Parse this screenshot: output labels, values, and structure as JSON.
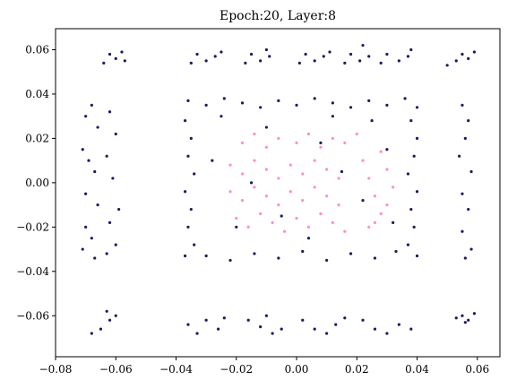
{
  "chart_data": {
    "type": "scatter",
    "title": "Epoch:20, Layer:8",
    "xlabel": "",
    "ylabel": "",
    "xlim": [
      -0.08,
      0.0675
    ],
    "ylim": [
      -0.0785,
      0.0695
    ],
    "x_ticks": [
      -0.08,
      -0.06,
      -0.04,
      -0.02,
      0.0,
      0.02,
      0.04,
      0.06
    ],
    "x_tick_labels": [
      "−0.08",
      "−0.06",
      "−0.04",
      "−0.02",
      "0.00",
      "0.02",
      "0.04",
      "0.06"
    ],
    "y_ticks": [
      -0.06,
      -0.04,
      -0.02,
      0.0,
      0.02,
      0.04,
      0.06
    ],
    "y_tick_labels": [
      "−0.06",
      "−0.04",
      "−0.02",
      "0.00",
      "0.02",
      "0.04",
      "0.06"
    ],
    "grid": false,
    "legend": "none",
    "series": [
      {
        "color": "#1a1a66",
        "points": [
          [
            -0.062,
            0.058
          ],
          [
            -0.06,
            0.056
          ],
          [
            -0.058,
            0.059
          ],
          [
            -0.064,
            0.054
          ],
          [
            -0.057,
            0.055
          ],
          [
            -0.033,
            0.058
          ],
          [
            -0.03,
            0.055
          ],
          [
            -0.027,
            0.057
          ],
          [
            -0.035,
            0.054
          ],
          [
            -0.025,
            0.059
          ],
          [
            -0.015,
            0.058
          ],
          [
            -0.012,
            0.055
          ],
          [
            -0.009,
            0.057
          ],
          [
            -0.017,
            0.054
          ],
          [
            -0.01,
            0.06
          ],
          [
            0.003,
            0.058
          ],
          [
            0.006,
            0.055
          ],
          [
            0.009,
            0.057
          ],
          [
            0.001,
            0.054
          ],
          [
            0.011,
            0.059
          ],
          [
            0.018,
            0.058
          ],
          [
            0.021,
            0.055
          ],
          [
            0.024,
            0.057
          ],
          [
            0.016,
            0.054
          ],
          [
            0.022,
            0.062
          ],
          [
            0.03,
            0.058
          ],
          [
            0.034,
            0.055
          ],
          [
            0.037,
            0.057
          ],
          [
            0.028,
            0.054
          ],
          [
            0.038,
            0.06
          ],
          [
            0.055,
            0.058
          ],
          [
            0.057,
            0.056
          ],
          [
            0.059,
            0.059
          ],
          [
            0.053,
            0.055
          ],
          [
            0.05,
            0.053
          ],
          [
            -0.068,
            0.035
          ],
          [
            -0.07,
            0.03
          ],
          [
            -0.066,
            0.025
          ],
          [
            -0.071,
            0.015
          ],
          [
            -0.069,
            0.01
          ],
          [
            -0.067,
            0.005
          ],
          [
            -0.07,
            -0.005
          ],
          [
            -0.066,
            -0.01
          ],
          [
            -0.07,
            -0.02
          ],
          [
            -0.068,
            -0.025
          ],
          [
            -0.071,
            -0.03
          ],
          [
            -0.067,
            -0.034
          ],
          [
            -0.062,
            0.032
          ],
          [
            -0.06,
            0.022
          ],
          [
            -0.063,
            0.012
          ],
          [
            -0.061,
            0.002
          ],
          [
            -0.059,
            -0.012
          ],
          [
            -0.062,
            -0.018
          ],
          [
            -0.06,
            -0.028
          ],
          [
            -0.063,
            -0.032
          ],
          [
            0.055,
            0.035
          ],
          [
            0.057,
            0.028
          ],
          [
            0.056,
            0.02
          ],
          [
            0.054,
            0.012
          ],
          [
            0.058,
            0.005
          ],
          [
            0.055,
            -0.005
          ],
          [
            0.057,
            -0.012
          ],
          [
            0.055,
            -0.022
          ],
          [
            0.058,
            -0.03
          ],
          [
            0.056,
            -0.034
          ],
          [
            -0.068,
            -0.068
          ],
          [
            -0.065,
            -0.066
          ],
          [
            -0.062,
            -0.062
          ],
          [
            -0.06,
            -0.06
          ],
          [
            -0.063,
            -0.058
          ],
          [
            -0.036,
            -0.064
          ],
          [
            -0.033,
            -0.068
          ],
          [
            -0.03,
            -0.062
          ],
          [
            -0.026,
            -0.066
          ],
          [
            -0.024,
            -0.061
          ],
          [
            -0.016,
            -0.062
          ],
          [
            -0.012,
            -0.065
          ],
          [
            -0.008,
            -0.068
          ],
          [
            -0.005,
            -0.066
          ],
          [
            -0.01,
            -0.06
          ],
          [
            0.002,
            -0.062
          ],
          [
            0.006,
            -0.066
          ],
          [
            0.01,
            -0.068
          ],
          [
            0.013,
            -0.064
          ],
          [
            0.016,
            -0.061
          ],
          [
            0.022,
            -0.062
          ],
          [
            0.026,
            -0.066
          ],
          [
            0.03,
            -0.068
          ],
          [
            0.034,
            -0.064
          ],
          [
            0.038,
            -0.066
          ],
          [
            0.055,
            -0.06
          ],
          [
            0.057,
            -0.062
          ],
          [
            0.053,
            -0.061
          ],
          [
            0.059,
            -0.059
          ],
          [
            0.056,
            -0.063
          ],
          [
            -0.036,
            0.037
          ],
          [
            -0.03,
            0.035
          ],
          [
            -0.024,
            0.038
          ],
          [
            -0.018,
            0.036
          ],
          [
            -0.012,
            0.034
          ],
          [
            -0.006,
            0.037
          ],
          [
            0.0,
            0.035
          ],
          [
            0.006,
            0.038
          ],
          [
            0.012,
            0.036
          ],
          [
            0.018,
            0.034
          ],
          [
            0.024,
            0.037
          ],
          [
            0.03,
            0.035
          ],
          [
            0.036,
            0.038
          ],
          [
            0.04,
            0.034
          ],
          [
            -0.037,
            0.028
          ],
          [
            -0.035,
            0.02
          ],
          [
            -0.036,
            0.012
          ],
          [
            -0.034,
            0.004
          ],
          [
            -0.037,
            -0.004
          ],
          [
            -0.035,
            -0.012
          ],
          [
            -0.036,
            -0.02
          ],
          [
            -0.034,
            -0.028
          ],
          [
            -0.037,
            -0.033
          ],
          [
            0.038,
            0.028
          ],
          [
            0.04,
            0.02
          ],
          [
            0.039,
            0.012
          ],
          [
            0.037,
            0.004
          ],
          [
            0.04,
            -0.004
          ],
          [
            0.038,
            -0.012
          ],
          [
            0.039,
            -0.02
          ],
          [
            0.037,
            -0.028
          ],
          [
            0.04,
            -0.033
          ],
          [
            -0.03,
            -0.033
          ],
          [
            -0.022,
            -0.035
          ],
          [
            -0.014,
            -0.032
          ],
          [
            -0.006,
            -0.034
          ],
          [
            0.002,
            -0.031
          ],
          [
            0.01,
            -0.035
          ],
          [
            0.018,
            -0.032
          ],
          [
            0.026,
            -0.034
          ],
          [
            0.033,
            -0.031
          ],
          [
            -0.028,
            0.01
          ],
          [
            -0.015,
            0.0
          ],
          [
            -0.005,
            -0.015
          ],
          [
            0.008,
            0.018
          ],
          [
            0.015,
            0.005
          ],
          [
            0.022,
            -0.008
          ],
          [
            0.03,
            0.015
          ],
          [
            0.012,
            0.03
          ],
          [
            -0.01,
            0.025
          ],
          [
            -0.02,
            -0.02
          ],
          [
            0.004,
            -0.025
          ],
          [
            0.025,
            0.028
          ],
          [
            0.032,
            -0.018
          ],
          [
            -0.025,
            0.03
          ]
        ]
      },
      {
        "color": "#ff69b4",
        "points": [
          [
            -0.022,
            0.008
          ],
          [
            -0.018,
            0.004
          ],
          [
            -0.014,
            0.01
          ],
          [
            -0.01,
            0.006
          ],
          [
            -0.006,
            0.002
          ],
          [
            -0.002,
            0.008
          ],
          [
            0.002,
            0.004
          ],
          [
            0.006,
            0.01
          ],
          [
            0.01,
            0.006
          ],
          [
            0.014,
            0.002
          ],
          [
            -0.022,
            -0.004
          ],
          [
            -0.018,
            -0.008
          ],
          [
            -0.014,
            -0.002
          ],
          [
            -0.01,
            -0.006
          ],
          [
            -0.006,
            -0.01
          ],
          [
            -0.002,
            -0.004
          ],
          [
            0.002,
            -0.008
          ],
          [
            0.006,
            -0.002
          ],
          [
            0.01,
            -0.006
          ],
          [
            0.014,
            -0.01
          ],
          [
            -0.02,
            -0.016
          ],
          [
            -0.016,
            -0.02
          ],
          [
            -0.012,
            -0.014
          ],
          [
            -0.008,
            -0.018
          ],
          [
            -0.004,
            -0.022
          ],
          [
            0.0,
            -0.016
          ],
          [
            0.004,
            -0.02
          ],
          [
            0.008,
            -0.014
          ],
          [
            0.012,
            -0.018
          ],
          [
            0.016,
            -0.022
          ],
          [
            -0.018,
            0.018
          ],
          [
            -0.014,
            0.022
          ],
          [
            -0.01,
            0.016
          ],
          [
            -0.006,
            0.02
          ],
          [
            0.0,
            0.018
          ],
          [
            0.004,
            0.022
          ],
          [
            0.008,
            0.016
          ],
          [
            0.012,
            0.02
          ],
          [
            0.016,
            0.018
          ],
          [
            0.02,
            0.022
          ],
          [
            0.022,
            0.01
          ],
          [
            0.024,
            0.002
          ],
          [
            0.026,
            -0.006
          ],
          [
            0.028,
            -0.014
          ],
          [
            0.024,
            -0.02
          ],
          [
            0.03,
            0.006
          ],
          [
            0.032,
            -0.002
          ],
          [
            0.03,
            -0.01
          ],
          [
            0.028,
            0.014
          ],
          [
            0.026,
            -0.018
          ]
        ]
      }
    ]
  }
}
